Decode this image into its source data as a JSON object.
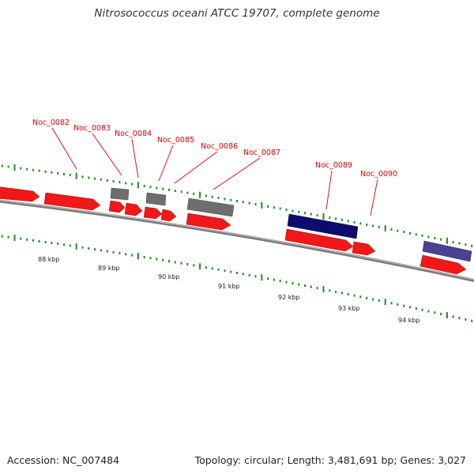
{
  "title": "Nitrosococcus oceani ATCC 19707, complete genome",
  "footer": {
    "accession": "Accession: NC_007484",
    "summary": "Topology: circular; Length: 3,481,691 bp; Genes: 3,027"
  },
  "colors": {
    "forward_cds": "#ff2020",
    "other_gene": "#777777",
    "rna_gene": "#0a0a7a",
    "feature": "#4a4090",
    "label": "#dd0000",
    "tick": "#228822",
    "backbone": "#888888"
  },
  "gene_labels": [
    "Noc_0082",
    "Noc_0083",
    "Noc_0084",
    "Noc_0085",
    "Noc_0086",
    "Noc_0087",
    "Noc_0089",
    "Noc_0090"
  ],
  "kbp_labels": [
    "88 kbp",
    "89 kbp",
    "90 kbp",
    "91 kbp",
    "92 kbp",
    "93 kbp",
    "94 kbp"
  ]
}
